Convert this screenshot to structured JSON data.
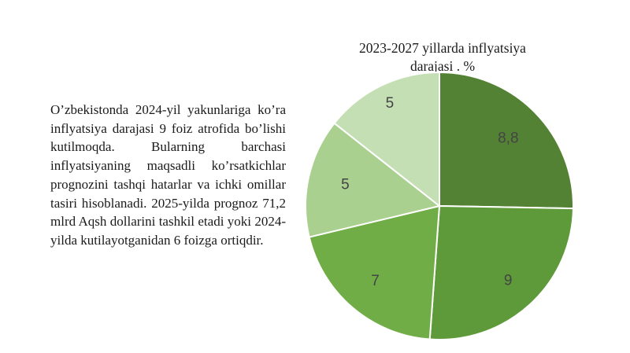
{
  "paragraph": "O’zbekistonda 2024-yil yakunlariga ko’ra inflyatsiya darajasi 9 foiz atrofida bo’lishi kutilmoqda. Bularning barchasi inflyatsiyaning maqsadli ko’rsatkichlar prognozini tashqi hatarlar va ichki omillar tasiri hisoblanadi. 2025-yilda prognoz 71,2 mlrd Aqsh dollarini tashkil etadi yoki 2024-yilda kutilayotganidan 6 foizga ortiqdir.",
  "chart_data": {
    "type": "pie",
    "title": "2023-2027 yillarda inflyatsiya darajasi . %",
    "labels": [
      "8,8",
      "9",
      "7",
      "5",
      "5"
    ],
    "values": [
      8.8,
      9,
      7,
      5,
      5
    ],
    "colors": [
      "#548235",
      "#5f9a3a",
      "#70ad47",
      "#a9d08e",
      "#c5dfb4"
    ],
    "legend": "none"
  }
}
